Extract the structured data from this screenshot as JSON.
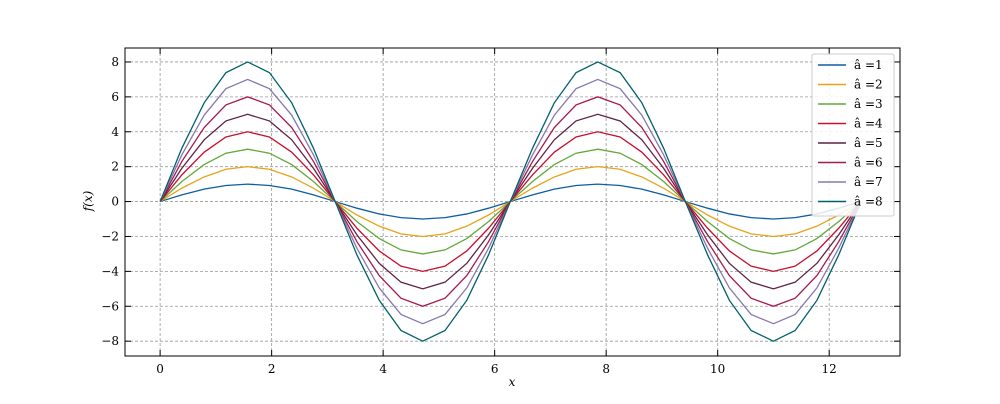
{
  "chart_data": {
    "type": "line",
    "xlabel": "x",
    "ylabel": "f(x)",
    "x": [
      0,
      0.39,
      0.79,
      1.18,
      1.57,
      1.96,
      2.36,
      2.75,
      3.14,
      3.53,
      3.93,
      4.32,
      4.71,
      5.11,
      5.5,
      5.89,
      6.28,
      6.68,
      7.07,
      7.46,
      7.85,
      8.25,
      8.64,
      9.03,
      9.42,
      9.82,
      10.21,
      10.6,
      11.0,
      11.39,
      11.78,
      12.17,
      12.57
    ],
    "series": [
      {
        "name": "â =1",
        "color": "#0C5DA5",
        "values": [
          0,
          0.38,
          0.71,
          0.92,
          1,
          0.92,
          0.71,
          0.38,
          0,
          -0.38,
          -0.71,
          -0.92,
          -1,
          -0.92,
          -0.71,
          -0.38,
          0,
          0.38,
          0.71,
          0.92,
          1,
          0.92,
          0.71,
          0.38,
          0,
          -0.38,
          -0.71,
          -0.92,
          -1,
          -0.92,
          -0.71,
          -0.38,
          0
        ]
      },
      {
        "name": "â =2",
        "color": "#E8A317",
        "values": [
          0,
          0.77,
          1.41,
          1.85,
          2,
          1.85,
          1.41,
          0.77,
          0,
          -0.77,
          -1.41,
          -1.85,
          -2,
          -1.85,
          -1.41,
          -0.77,
          0,
          0.77,
          1.41,
          1.85,
          2,
          1.85,
          1.41,
          0.77,
          0,
          -0.77,
          -1.41,
          -1.85,
          -2,
          -1.85,
          -1.41,
          -0.77,
          0
        ]
      },
      {
        "name": "â =3",
        "color": "#62A83A",
        "values": [
          0,
          1.15,
          2.12,
          2.77,
          3,
          2.77,
          2.12,
          1.15,
          0,
          -1.15,
          -2.12,
          -2.77,
          -3,
          -2.77,
          -2.12,
          -1.15,
          0,
          1.15,
          2.12,
          2.77,
          3,
          2.77,
          2.12,
          1.15,
          0,
          -1.15,
          -2.12,
          -2.77,
          -3,
          -2.77,
          -2.12,
          -1.15,
          0
        ]
      },
      {
        "name": "â =4",
        "color": "#C8102E",
        "values": [
          0,
          1.53,
          2.83,
          3.7,
          4,
          3.7,
          2.83,
          1.53,
          0,
          -1.53,
          -2.83,
          -3.7,
          -4,
          -3.7,
          -2.83,
          -1.53,
          0,
          1.53,
          2.83,
          3.7,
          4,
          3.7,
          2.83,
          1.53,
          0,
          -1.53,
          -2.83,
          -3.7,
          -4,
          -3.7,
          -2.83,
          -1.53,
          0
        ]
      },
      {
        "name": "â =5",
        "color": "#5E2146",
        "values": [
          0,
          1.91,
          3.54,
          4.62,
          5,
          4.62,
          3.54,
          1.91,
          0,
          -1.91,
          -3.54,
          -4.62,
          -5,
          -4.62,
          -3.54,
          -1.91,
          0,
          1.91,
          3.54,
          4.62,
          5,
          4.62,
          3.54,
          1.91,
          0,
          -1.91,
          -3.54,
          -4.62,
          -5,
          -4.62,
          -3.54,
          -1.91,
          0
        ]
      },
      {
        "name": "â =6",
        "color": "#A6194B",
        "values": [
          0,
          2.3,
          4.24,
          5.54,
          6,
          5.54,
          4.24,
          2.3,
          0,
          -2.3,
          -4.24,
          -5.54,
          -6,
          -5.54,
          -4.24,
          -2.3,
          0,
          2.3,
          4.24,
          5.54,
          6,
          5.54,
          4.24,
          2.3,
          0,
          -2.3,
          -4.24,
          -5.54,
          -6,
          -5.54,
          -4.24,
          -2.3,
          0
        ]
      },
      {
        "name": "â =7",
        "color": "#8778AE",
        "values": [
          0,
          2.68,
          4.95,
          6.47,
          7,
          6.47,
          4.95,
          2.68,
          0,
          -2.68,
          -4.95,
          -6.47,
          -7,
          -6.47,
          -4.95,
          -2.68,
          0,
          2.68,
          4.95,
          6.47,
          7,
          6.47,
          4.95,
          2.68,
          0,
          -2.68,
          -4.95,
          -6.47,
          -7,
          -6.47,
          -4.95,
          -2.68,
          0
        ]
      },
      {
        "name": "â =8",
        "color": "#00606B",
        "values": [
          0,
          3.06,
          5.66,
          7.39,
          8,
          7.39,
          5.66,
          3.06,
          0,
          -3.06,
          -5.66,
          -7.39,
          -8,
          -7.39,
          -5.66,
          -3.06,
          0,
          3.06,
          5.66,
          7.39,
          8,
          7.39,
          5.66,
          3.06,
          0,
          -3.06,
          -5.66,
          -7.39,
          -8,
          -7.39,
          -5.66,
          -3.06,
          0
        ]
      }
    ],
    "xlim": [
      -0.63,
      13.27
    ],
    "ylim": [
      -8.85,
      8.8
    ],
    "xticks": [
      0,
      2,
      4,
      6,
      8,
      10,
      12
    ],
    "yticks": [
      {
        "value": -8,
        "label": "−8"
      },
      {
        "value": -6,
        "label": "−6"
      },
      {
        "value": -4,
        "label": "−4"
      },
      {
        "value": -2,
        "label": "−2"
      },
      0,
      2,
      4,
      6,
      8
    ],
    "grid": true,
    "legend": "upper right"
  }
}
